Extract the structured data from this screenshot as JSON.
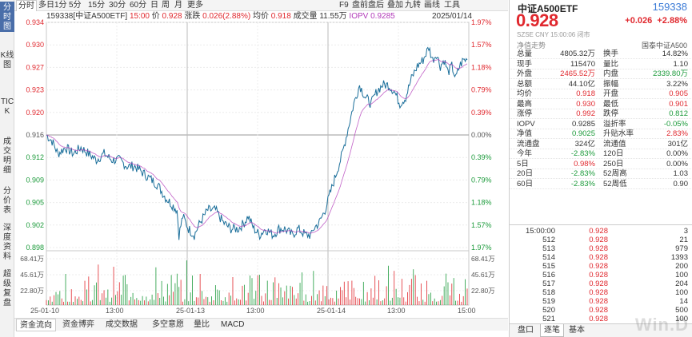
{
  "sidebar": {
    "items": [
      {
        "label": "分时图",
        "active": true
      },
      {
        "label": "K线图",
        "active": false
      },
      {
        "label": "TICK",
        "active": false
      },
      {
        "label": "成交明细",
        "active": false
      },
      {
        "label": "分价表",
        "active": false
      },
      {
        "label": "深度资料",
        "active": false
      },
      {
        "label": "超级复盘",
        "active": false
      }
    ]
  },
  "toolbar": {
    "left": [
      "分时",
      "多日",
      "1分",
      "5分",
      "15分",
      "30分",
      "60分",
      "日",
      "周",
      "月",
      "更多"
    ],
    "right": [
      "F9",
      "盘前盘后",
      "叠加",
      "九转",
      "画线",
      "工具"
    ]
  },
  "info": {
    "code_name": "159338[中证A500ETF]",
    "time": "15:00",
    "price_label": "价",
    "price": "0.928",
    "chg_label": "涨跌",
    "chg": "0.026(2.88%)",
    "avg_label": "均价",
    "avg": "0.918",
    "vol_label": "成交量",
    "vol": "11.55万",
    "iopv_label": "IOPV",
    "iopv": "0.9285",
    "date": "2025/01/14"
  },
  "chart_data": {
    "type": "line",
    "title": "",
    "y_left_ticks": [
      "0.934",
      "0.930",
      "0.927",
      "0.923",
      "0.920",
      "0.916",
      "0.912",
      "0.909",
      "0.905",
      "0.902",
      "0.898"
    ],
    "y_right_ticks": [
      "1.97%",
      "1.57%",
      "1.18%",
      "0.79%",
      "0.39%",
      "0.00%",
      "0.39%",
      "0.79%",
      "1.18%",
      "1.57%",
      "1.97%"
    ],
    "ylim": [
      0.898,
      0.934
    ],
    "prev_close": 0.916,
    "x_tick_labels": [
      "25-01-10",
      "13:00",
      "25-01-13",
      "13:00",
      "25-01-14",
      "13:00",
      "15:00"
    ],
    "days": [
      "2025-01-10",
      "2025-01-13",
      "2025-01-14"
    ],
    "series": [
      {
        "name": "价",
        "color": "#1a6e9a",
        "keypoints": [
          [
            0,
            0.916
          ],
          [
            6,
            0.915
          ],
          [
            12,
            0.913
          ],
          [
            20,
            0.914
          ],
          [
            28,
            0.913
          ],
          [
            36,
            0.914
          ],
          [
            44,
            0.913
          ],
          [
            52,
            0.912
          ],
          [
            60,
            0.913
          ],
          [
            68,
            0.912
          ],
          [
            76,
            0.912
          ],
          [
            84,
            0.911
          ],
          [
            92,
            0.911
          ],
          [
            100,
            0.91
          ],
          [
            108,
            0.909
          ],
          [
            116,
            0.908
          ],
          [
            124,
            0.906
          ],
          [
            130,
            0.905
          ],
          [
            136,
            0.904
          ],
          [
            138,
            0.9
          ],
          [
            142,
            0.903
          ],
          [
            148,
            0.901
          ],
          [
            154,
            0.9
          ],
          [
            160,
            0.902
          ],
          [
            168,
            0.904
          ],
          [
            176,
            0.904
          ],
          [
            184,
            0.902
          ],
          [
            192,
            0.901
          ],
          [
            200,
            0.901
          ],
          [
            206,
            0.902
          ],
          [
            210,
            0.903
          ],
          [
            216,
            0.901
          ],
          [
            222,
            0.9
          ],
          [
            228,
            0.901
          ],
          [
            236,
            0.9
          ],
          [
            242,
            0.901
          ],
          [
            248,
            0.901
          ],
          [
            256,
            0.9
          ],
          [
            262,
            0.901
          ],
          [
            270,
            0.9
          ],
          [
            276,
            0.9
          ],
          [
            278,
            0.901
          ],
          [
            284,
            0.902
          ],
          [
            290,
            0.904
          ],
          [
            296,
            0.907
          ],
          [
            302,
            0.91
          ],
          [
            308,
            0.913
          ],
          [
            314,
            0.917
          ],
          [
            320,
            0.921
          ],
          [
            326,
            0.924
          ],
          [
            332,
            0.922
          ],
          [
            338,
            0.921
          ],
          [
            344,
            0.923
          ],
          [
            350,
            0.924
          ],
          [
            356,
            0.924
          ],
          [
            362,
            0.923
          ],
          [
            368,
            0.921
          ],
          [
            374,
            0.922
          ],
          [
            380,
            0.925
          ],
          [
            386,
            0.927
          ],
          [
            392,
            0.928
          ],
          [
            398,
            0.93
          ],
          [
            402,
            0.928
          ],
          [
            406,
            0.929
          ],
          [
            410,
            0.927
          ],
          [
            414,
            0.928
          ],
          [
            418,
            0.926
          ],
          [
            422,
            0.927
          ],
          [
            426,
            0.925
          ],
          [
            430,
            0.927
          ],
          [
            434,
            0.928
          ],
          [
            438,
            0.928
          ]
        ]
      },
      {
        "name": "均价",
        "color": "#b23ab9"
      }
    ],
    "volume_ticks": [
      "68.41万",
      "45.61万",
      "22.80万"
    ],
    "grid": true
  },
  "bottom_tabs": [
    "资金流向",
    "资金博弈",
    "成交数据",
    "多空意愿",
    "量比",
    "MACD"
  ],
  "quote": {
    "name": "中证A500ETF",
    "code": "159338",
    "price": "0.928",
    "change": "+0.026",
    "change_pct": "+2.88%",
    "sub": "SZSE  CNY   15:00:06   闭市",
    "nav_label": "净值走势",
    "fund_company": "国泰中证A500",
    "rows": [
      [
        {
          "l": "总量",
          "v": "4805.32万",
          "c": ""
        },
        {
          "l": "换手",
          "v": "14.82%",
          "c": ""
        }
      ],
      [
        {
          "l": "现手",
          "v": "115470",
          "c": ""
        },
        {
          "l": "量比",
          "v": "1.10",
          "c": ""
        }
      ],
      [
        {
          "l": "外盘",
          "v": "2465.52万",
          "c": "red"
        },
        {
          "l": "内盘",
          "v": "2339.80万",
          "c": "green"
        }
      ],
      [
        {
          "l": "总额",
          "v": "44.10亿",
          "c": ""
        },
        {
          "l": "振幅",
          "v": "3.22%",
          "c": ""
        }
      ],
      [
        {
          "l": "均价",
          "v": "0.918",
          "c": "red"
        },
        {
          "l": "开盘",
          "v": "0.905",
          "c": "red"
        }
      ],
      [
        {
          "l": "最高",
          "v": "0.930",
          "c": "red"
        },
        {
          "l": "最低",
          "v": "0.901",
          "c": "red"
        }
      ],
      [
        {
          "l": "涨停",
          "v": "0.992",
          "c": "red"
        },
        {
          "l": "跌停",
          "v": "0.812",
          "c": "green"
        }
      ],
      [
        {
          "l": "IOPV",
          "v": "0.9285",
          "c": ""
        },
        {
          "l": "溢折率",
          "v": "-0.05%",
          "c": "green"
        }
      ],
      [
        {
          "l": "净值",
          "v": "0.9025",
          "c": "green"
        },
        {
          "l": "升贴水率",
          "v": "2.83%",
          "c": "red"
        }
      ],
      [
        {
          "l": "流通盘",
          "v": "324亿",
          "c": ""
        },
        {
          "l": "流通值",
          "v": "301亿",
          "c": ""
        }
      ],
      [
        {
          "l": "今年",
          "v": "-2.83%",
          "c": "green"
        },
        {
          "l": "120日",
          "v": "0.00%",
          "c": ""
        }
      ],
      [
        {
          "l": "5日",
          "v": "0.98%",
          "c": "red"
        },
        {
          "l": "250日",
          "v": "0.00%",
          "c": ""
        }
      ],
      [
        {
          "l": "20日",
          "v": "-2.83%",
          "c": "green"
        },
        {
          "l": "52周高",
          "v": "1.03",
          "c": ""
        }
      ],
      [
        {
          "l": "60日",
          "v": "-2.83%",
          "c": "green"
        },
        {
          "l": "52周低",
          "v": "0.90",
          "c": ""
        }
      ]
    ],
    "trades": [
      {
        "t": "15:00:00",
        "p": "0.928",
        "v": "3"
      },
      {
        "t": "512",
        "p": "0.928",
        "v": "21"
      },
      {
        "t": "513",
        "p": "0.928",
        "v": "979"
      },
      {
        "t": "514",
        "p": "0.928",
        "v": "1393"
      },
      {
        "t": "515",
        "p": "0.928",
        "v": "200"
      },
      {
        "t": "516",
        "p": "0.928",
        "v": "100"
      },
      {
        "t": "517",
        "p": "0.928",
        "v": "204"
      },
      {
        "t": "518",
        "p": "0.928",
        "v": "100"
      },
      {
        "t": "519",
        "p": "0.928",
        "v": "14"
      },
      {
        "t": "520",
        "p": "0.928",
        "v": "500"
      },
      {
        "t": "521",
        "p": "0.928",
        "v": "100"
      }
    ],
    "tabs": [
      "盘口",
      "逐笔",
      "基本"
    ]
  },
  "watermark": "Win.D",
  "colors": {
    "up": "#e0282e",
    "down": "#1b9a3a",
    "price_line": "#1a6e9a",
    "avg_line": "#b23ab9",
    "accent": "#3a7ad6"
  }
}
